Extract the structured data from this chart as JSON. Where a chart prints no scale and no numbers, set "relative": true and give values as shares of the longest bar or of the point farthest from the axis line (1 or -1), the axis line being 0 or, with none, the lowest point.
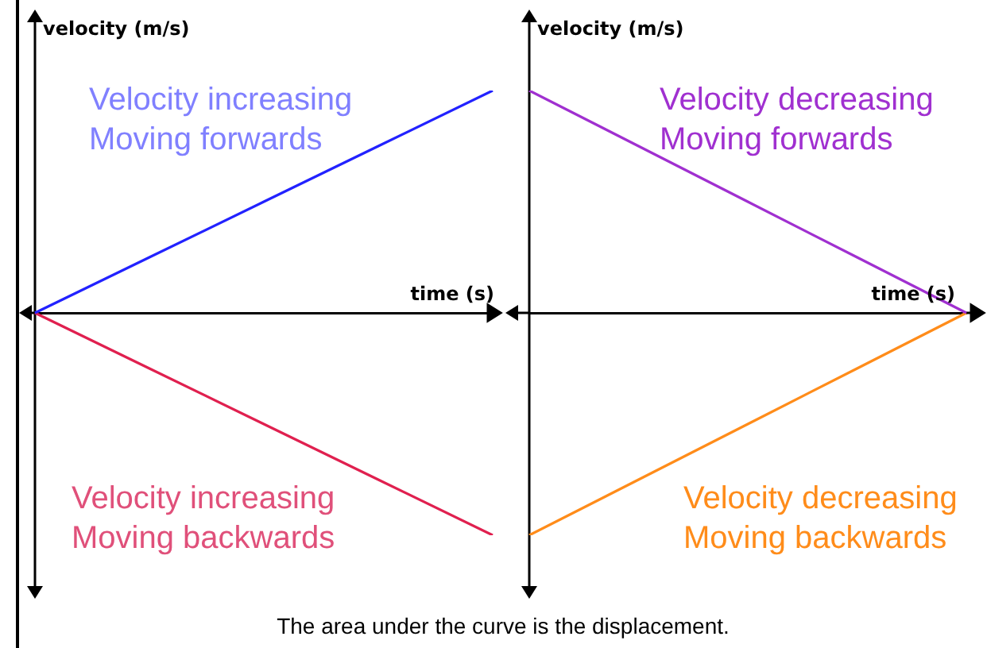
{
  "chart_data": [
    {
      "type": "line",
      "relative": true,
      "xlabel": "time (s)",
      "ylabel": "velocity (m/s)",
      "categories": [
        null,
        null,
        null,
        null,
        null
      ],
      "legend": false,
      "grid": false,
      "annotations": [
        "The area under the curve is the displacement."
      ],
      "series": [
        {
          "name": "Velocity increasing\nMoving forwards",
          "color": "#2222ff",
          "values": [
            0,
            0.25,
            0.5,
            0.75,
            1
          ]
        },
        {
          "name": "Velocity increasing\nMoving backwards",
          "color": "#e0204f",
          "values": [
            0,
            -0.25,
            -0.5,
            -0.75,
            -1
          ]
        }
      ]
    },
    {
      "type": "line",
      "relative": true,
      "xlabel": "time (s)",
      "ylabel": "velocity (m/s)",
      "categories": [
        null,
        null,
        null,
        null,
        null
      ],
      "legend": false,
      "grid": false,
      "series": [
        {
          "name": "Velocity decreasing\nMoving forwards",
          "color": "#a030d0",
          "values": [
            1,
            0.75,
            0.5,
            0.25,
            0
          ]
        },
        {
          "name": "Velocity decreasing\nMoving backwards",
          "color": "#ff8c1a",
          "values": [
            -1,
            -0.75,
            -0.5,
            -0.25,
            0
          ]
        }
      ]
    }
  ]
}
